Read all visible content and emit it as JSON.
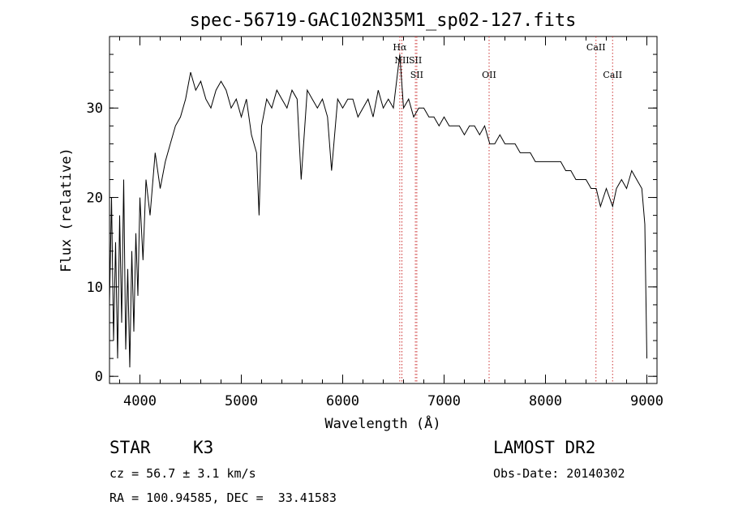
{
  "chart_data": {
    "type": "line",
    "title": "spec-56719-GAC102N35M1_sp02-127.fits",
    "xlabel": "Wavelength (Å)",
    "ylabel": "Flux (relative)",
    "xlim": [
      3700,
      9100
    ],
    "ylim": [
      -0.8,
      38
    ],
    "xticks": [
      4000,
      5000,
      6000,
      7000,
      8000,
      9000
    ],
    "yticks": [
      0,
      10,
      20,
      30
    ],
    "grid": false,
    "series": [
      {
        "x": [
          3700,
          3720,
          3740,
          3760,
          3780,
          3800,
          3820,
          3840,
          3860,
          3880,
          3900,
          3920,
          3940,
          3960,
          3980,
          4000,
          4030,
          4060,
          4100,
          4150,
          4200,
          4250,
          4300,
          4350,
          4400,
          4450,
          4500,
          4550,
          4600,
          4650,
          4700,
          4750,
          4800,
          4850,
          4900,
          4950,
          5000,
          5050,
          5100,
          5150,
          5175,
          5200,
          5250,
          5300,
          5350,
          5400,
          5450,
          5500,
          5550,
          5590,
          5650,
          5700,
          5750,
          5800,
          5850,
          5890,
          5950,
          6000,
          6050,
          6100,
          6150,
          6200,
          6250,
          6300,
          6350,
          6400,
          6450,
          6500,
          6563,
          6600,
          6650,
          6700,
          6750,
          6800,
          6850,
          6900,
          6950,
          7000,
          7050,
          7100,
          7150,
          7200,
          7250,
          7300,
          7350,
          7400,
          7450,
          7500,
          7550,
          7600,
          7650,
          7700,
          7750,
          7800,
          7850,
          7900,
          7950,
          8000,
          8050,
          8100,
          8150,
          8200,
          8250,
          8300,
          8350,
          8400,
          8450,
          8500,
          8542,
          8600,
          8662,
          8700,
          8750,
          8800,
          8850,
          8900,
          8950,
          8980,
          9000
        ],
        "y": [
          8,
          20,
          4,
          15,
          2,
          18,
          6,
          22,
          3,
          12,
          1,
          14,
          5,
          16,
          9,
          20,
          13,
          22,
          18,
          25,
          21,
          24,
          26,
          28,
          29,
          31,
          34,
          32,
          33,
          31,
          30,
          32,
          33,
          32,
          30,
          31,
          29,
          31,
          27,
          25,
          18,
          28,
          31,
          30,
          32,
          31,
          30,
          32,
          31,
          22,
          32,
          31,
          30,
          31,
          29,
          23,
          31,
          30,
          31,
          31,
          29,
          30,
          31,
          29,
          32,
          30,
          31,
          30,
          36,
          30,
          31,
          29,
          30,
          30,
          29,
          29,
          28,
          29,
          28,
          28,
          28,
          27,
          28,
          28,
          27,
          28,
          26,
          26,
          27,
          26,
          26,
          26,
          25,
          25,
          25,
          24,
          24,
          24,
          24,
          24,
          24,
          23,
          23,
          22,
          22,
          22,
          21,
          21,
          19,
          21,
          19,
          21,
          22,
          21,
          23,
          22,
          21,
          17,
          2
        ]
      }
    ],
    "annotations": [
      {
        "label": "Hα",
        "x": 6563
      },
      {
        "label": "NII",
        "x": 6584
      },
      {
        "label": "SII",
        "x": 6717
      },
      {
        "label": "SII",
        "x": 6731
      },
      {
        "label": "OII",
        "x": 7444
      },
      {
        "label": "CaII",
        "x": 8498
      },
      {
        "label": "CaII",
        "x": 8662
      }
    ]
  },
  "info": {
    "object_class": "STAR",
    "subclass": "K3",
    "survey": "LAMOST DR2",
    "cz": "cz = 56.7 ± 3.1 km/s",
    "obs_date": "Obs-Date: 20140302",
    "coords": "RA = 100.94585, DEC =  33.41583"
  }
}
